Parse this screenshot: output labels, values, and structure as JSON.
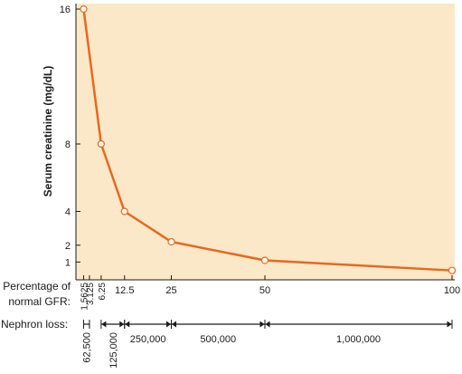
{
  "chart_data": {
    "type": "line",
    "ylabel": "Serum creatinine (mg/dL)",
    "xlabel": "Percentage of normal GFR:",
    "y_ticks": [
      1,
      2,
      4,
      8,
      16
    ],
    "ylim": [
      0,
      16
    ],
    "xlim": [
      0,
      100
    ],
    "x_ticks": [
      {
        "value": 1.5625,
        "label": "1.5625",
        "rotated": true
      },
      {
        "value": 3.125,
        "label": "3.125",
        "rotated": true
      },
      {
        "value": 6.25,
        "label": "6.25",
        "rotated": true
      },
      {
        "value": 12.5,
        "label": "12.5",
        "rotated": false
      },
      {
        "value": 25,
        "label": "25",
        "rotated": false
      },
      {
        "value": 50,
        "label": "50",
        "rotated": false
      },
      {
        "value": 100,
        "label": "100",
        "rotated": false
      }
    ],
    "series": [
      {
        "x": [
          1.5625,
          6.25,
          12.5,
          25,
          50,
          100
        ],
        "y": [
          16,
          8,
          4,
          2.2,
          1.1,
          0.5
        ]
      }
    ],
    "nephron_loss": {
      "label": "Nephron loss:",
      "segments": [
        {
          "from": 1.5625,
          "to": 3.125,
          "label": "62,500",
          "rotated": true
        },
        {
          "from": 6.25,
          "to": 12.5,
          "label": "125,000",
          "rotated": true
        },
        {
          "from": 12.5,
          "to": 25,
          "label": "250,000",
          "rotated": false
        },
        {
          "from": 25,
          "to": 50,
          "label": "500,000",
          "rotated": false
        },
        {
          "from": 50,
          "to": 100,
          "label": "1,000,000",
          "rotated": false
        }
      ]
    },
    "grid": false,
    "colors": {
      "plot_background": "#fbe8c8",
      "line": "#e8681e",
      "marker_fill": "#ffffff",
      "axis": "#1a1a1a",
      "text": "#1a1a1a"
    }
  }
}
